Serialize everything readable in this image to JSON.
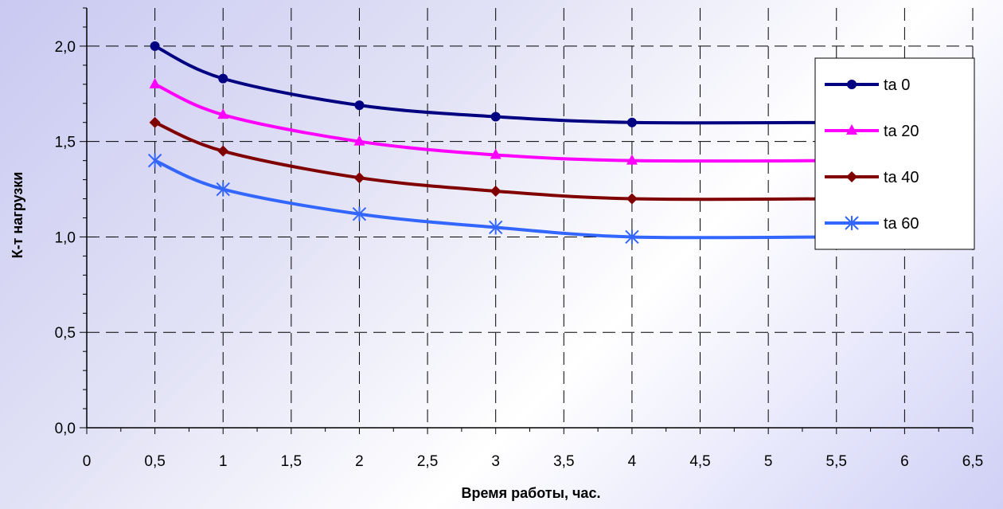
{
  "chart_data": {
    "type": "line",
    "title": "",
    "xlabel": "Время работы, час.",
    "ylabel": "К-т нагрузки",
    "xlim": [
      0,
      6.5
    ],
    "ylim": [
      0,
      2.2
    ],
    "x_ticks": [
      "0",
      "0,5",
      "1",
      "1,5",
      "2",
      "2,5",
      "3",
      "3,5",
      "4",
      "4,5",
      "5",
      "5,5",
      "6",
      "6,5"
    ],
    "y_ticks": [
      "0,0",
      "0,5",
      "1,0",
      "1,5",
      "2,0"
    ],
    "grid": "dashed",
    "legend_position": "right",
    "series": [
      {
        "name": "ta 0",
        "color": "#000080",
        "marker": "circle",
        "x": [
          0.5,
          1,
          2,
          3,
          4,
          5.5
        ],
        "y": [
          2.0,
          1.83,
          1.69,
          1.63,
          1.6,
          1.6
        ]
      },
      {
        "name": "ta 20",
        "color": "#ff00ff",
        "marker": "triangle",
        "x": [
          0.5,
          1,
          2,
          3,
          4,
          5.5
        ],
        "y": [
          1.8,
          1.64,
          1.5,
          1.43,
          1.4,
          1.4
        ]
      },
      {
        "name": "ta 40",
        "color": "#800000",
        "marker": "diamond",
        "x": [
          0.5,
          1,
          2,
          3,
          4,
          5.5
        ],
        "y": [
          1.6,
          1.45,
          1.31,
          1.24,
          1.2,
          1.2
        ]
      },
      {
        "name": "ta 60",
        "color": "#3366ff",
        "marker": "asterisk",
        "x": [
          0.5,
          1,
          2,
          3,
          4,
          5.5
        ],
        "y": [
          1.4,
          1.25,
          1.12,
          1.05,
          1.0,
          1.0
        ]
      }
    ]
  }
}
